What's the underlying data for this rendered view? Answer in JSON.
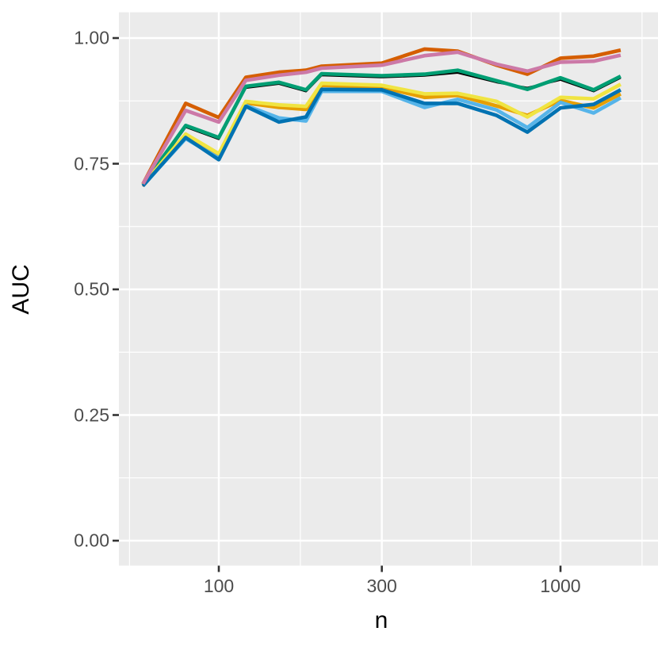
{
  "figure": {
    "background": "#FFFFFF",
    "panel_background": "#EBEBEB",
    "grid_color": "#FFFFFF",
    "tick_mark_color": "#333333",
    "tick_label_color": "#4D4D4D",
    "axis_title_color": "#000000"
  },
  "chart_data": {
    "type": "line",
    "title": "",
    "xlabel": "n",
    "ylabel": "AUC",
    "x_scale": "log10",
    "grid": true,
    "legend_position": "none",
    "x_axis": {
      "ticks": [
        100,
        300,
        1000
      ],
      "tick_labels": [
        "100",
        "300",
        "1000"
      ],
      "minor_breaks": [
        54.772,
        173.205,
        547.723,
        1732.05
      ],
      "range": [
        60,
        1500
      ]
    },
    "y_axis": {
      "ticks": [
        0,
        0.25,
        0.5,
        0.75,
        1.0
      ],
      "tick_labels": [
        "0.00",
        "0.25",
        "0.50",
        "0.75",
        "1.00"
      ],
      "minor_breaks": [
        0.125,
        0.375,
        0.625,
        0.875
      ],
      "range": [
        0,
        1
      ]
    },
    "x": [
      60,
      80,
      100,
      120,
      150,
      180,
      200,
      300,
      400,
      500,
      650,
      800,
      1000,
      1250,
      1500
    ],
    "series": [
      {
        "name": "black",
        "color": "#000000",
        "linewidth": 2.6,
        "values": [
          0.705,
          0.823,
          0.799,
          0.901,
          0.909,
          0.894,
          0.926,
          0.922,
          0.925,
          0.931,
          0.912,
          0.901,
          0.917,
          0.894,
          0.921
        ]
      },
      {
        "name": "orange",
        "color": "#E69F00",
        "linewidth": 4.6,
        "values": [
          0.707,
          0.806,
          0.767,
          0.871,
          0.862,
          0.858,
          0.906,
          0.902,
          0.882,
          0.886,
          0.865,
          0.846,
          0.876,
          0.861,
          0.889
        ]
      },
      {
        "name": "sky-blue",
        "color": "#56B4E9",
        "linewidth": 4.6,
        "values": [
          0.707,
          0.8,
          0.761,
          0.866,
          0.841,
          0.835,
          0.894,
          0.894,
          0.862,
          0.878,
          0.857,
          0.822,
          0.872,
          0.851,
          0.881
        ]
      },
      {
        "name": "bluish-green",
        "color": "#009E73",
        "linewidth": 4.6,
        "values": [
          0.708,
          0.826,
          0.802,
          0.904,
          0.912,
          0.897,
          0.929,
          0.925,
          0.928,
          0.936,
          0.915,
          0.898,
          0.921,
          0.897,
          0.924
        ]
      },
      {
        "name": "yellow",
        "color": "#F0E442",
        "linewidth": 4.6,
        "values": [
          0.708,
          0.809,
          0.77,
          0.874,
          0.867,
          0.864,
          0.91,
          0.906,
          0.889,
          0.89,
          0.874,
          0.843,
          0.882,
          0.879,
          0.908
        ]
      },
      {
        "name": "blue",
        "color": "#0072B2",
        "linewidth": 4.6,
        "values": [
          0.706,
          0.802,
          0.758,
          0.864,
          0.833,
          0.843,
          0.898,
          0.897,
          0.87,
          0.87,
          0.846,
          0.813,
          0.861,
          0.868,
          0.897
        ]
      },
      {
        "name": "vermillion",
        "color": "#D55E00",
        "linewidth": 4.6,
        "values": [
          0.71,
          0.87,
          0.842,
          0.922,
          0.932,
          0.936,
          0.944,
          0.95,
          0.978,
          0.974,
          0.946,
          0.928,
          0.96,
          0.964,
          0.976
        ]
      },
      {
        "name": "reddish-purple",
        "color": "#CC79A7",
        "linewidth": 4.6,
        "values": [
          0.71,
          0.856,
          0.833,
          0.916,
          0.926,
          0.932,
          0.94,
          0.946,
          0.965,
          0.972,
          0.948,
          0.934,
          0.952,
          0.954,
          0.966
        ]
      }
    ]
  }
}
